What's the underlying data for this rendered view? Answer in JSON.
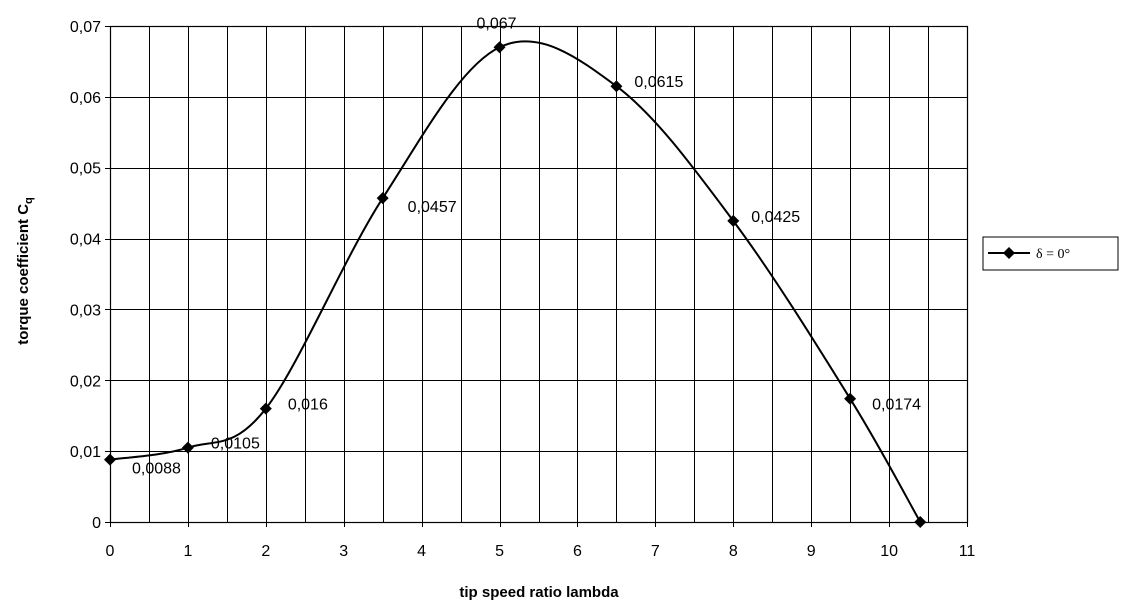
{
  "chart_data": {
    "type": "line",
    "series": [
      {
        "name": "δ = 0°",
        "x": [
          0,
          1,
          2,
          3.5,
          5,
          6.5,
          8,
          9.5,
          10.4
        ],
        "y": [
          0.0088,
          0.0105,
          0.016,
          0.0457,
          0.067,
          0.0615,
          0.0425,
          0.0174,
          0
        ],
        "labels": [
          "0,0088",
          "0,0105",
          "0,016",
          "0,0457",
          "0,067",
          "0,0615",
          "0,0425",
          "0,0174",
          ""
        ],
        "marker": "diamond",
        "smooth": true,
        "color": "#000000"
      }
    ],
    "xlabel": "tip speed ratio lambda",
    "ylabel_main": "torque coefficient C",
    "ylabel_sub": "q",
    "xlim": [
      0,
      11
    ],
    "ylim": [
      0,
      0.07
    ],
    "x_grid_step": 0.5,
    "y_grid_step": 0.01,
    "x_ticks": [
      {
        "value": 0,
        "label": "0"
      },
      {
        "value": 1,
        "label": "1"
      },
      {
        "value": 2,
        "label": "2"
      },
      {
        "value": 3,
        "label": "3"
      },
      {
        "value": 4,
        "label": "4"
      },
      {
        "value": 5,
        "label": "5"
      },
      {
        "value": 6,
        "label": "6"
      },
      {
        "value": 7,
        "label": "7"
      },
      {
        "value": 8,
        "label": "8"
      },
      {
        "value": 9,
        "label": "9"
      },
      {
        "value": 10,
        "label": "10"
      },
      {
        "value": 11,
        "label": "11"
      }
    ],
    "y_ticks": [
      {
        "value": 0,
        "label": "0"
      },
      {
        "value": 0.01,
        "label": "0,01"
      },
      {
        "value": 0.02,
        "label": "0,02"
      },
      {
        "value": 0.03,
        "label": "0,03"
      },
      {
        "value": 0.04,
        "label": "0,04"
      },
      {
        "value": 0.05,
        "label": "0,05"
      },
      {
        "value": 0.06,
        "label": "0,06"
      },
      {
        "value": 0.07,
        "label": "0,07"
      }
    ],
    "grid": true,
    "legend_position": "right"
  }
}
